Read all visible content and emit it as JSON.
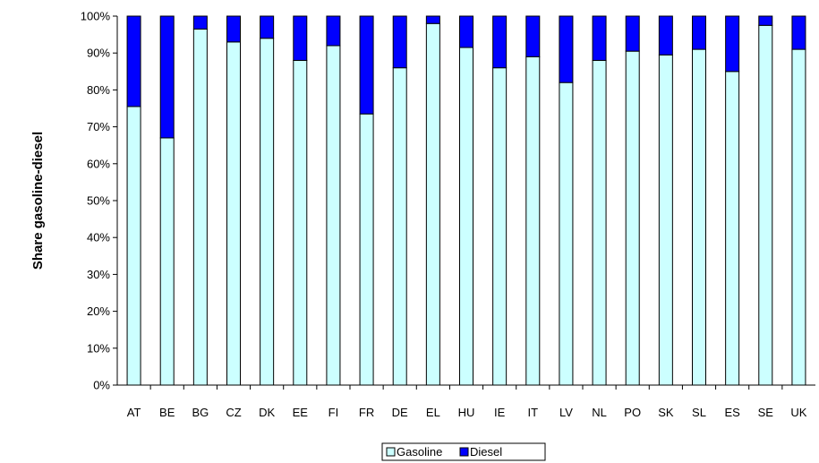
{
  "chart_data": {
    "type": "bar",
    "stacked": true,
    "ylabel": "Share gasoline-diesel",
    "xlabel": "",
    "ylim": [
      0,
      100
    ],
    "yticks": [
      "0%",
      "10%",
      "20%",
      "30%",
      "40%",
      "50%",
      "60%",
      "70%",
      "80%",
      "90%",
      "100%"
    ],
    "categories": [
      "AT",
      "BE",
      "BG",
      "CZ",
      "DK",
      "EE",
      "FI",
      "FR",
      "DE",
      "EL",
      "HU",
      "IE",
      "IT",
      "LV",
      "NL",
      "PO",
      "SK",
      "SL",
      "ES",
      "SE",
      "UK"
    ],
    "series": [
      {
        "name": "Gasoline",
        "color": "#ccffff",
        "values": [
          75.5,
          67,
          96.5,
          93,
          94,
          88,
          92,
          73.5,
          86,
          98,
          91.5,
          86,
          89,
          82,
          88,
          90.5,
          89.5,
          91,
          85,
          97.5,
          91
        ]
      },
      {
        "name": "Diesel",
        "color": "#0000ff",
        "values": [
          24.5,
          33,
          3.5,
          7,
          6,
          12,
          8,
          26.5,
          14,
          2,
          8.5,
          14,
          11,
          18,
          12,
          9.5,
          10.5,
          9,
          15,
          2.5,
          9
        ]
      }
    ],
    "grid": false,
    "legend_position": "bottom-center"
  }
}
